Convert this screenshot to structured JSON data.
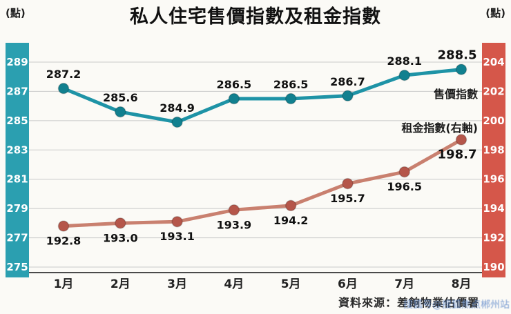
{
  "page": {
    "title": "私人住宅售價指數及租金指數",
    "left_unit": "(點)",
    "right_unit": "(點)",
    "source": "資料來源：差餉物業估價署",
    "watermark": "搜狐号@搜狐焦点郴州站"
  },
  "chart_data": {
    "type": "line",
    "title": "私人住宅售價指數及租金指數",
    "categories": [
      "1月",
      "2月",
      "3月",
      "4月",
      "5月",
      "6月",
      "7月",
      "8月"
    ],
    "series": [
      {
        "name": "售價指數",
        "axis": "left",
        "values": [
          287.2,
          285.6,
          284.9,
          286.5,
          286.5,
          286.7,
          288.1,
          288.5
        ],
        "color": "#1e93a6",
        "dot_color": "#11808f",
        "label_position": "above"
      },
      {
        "name": "租金指數(右軸)",
        "axis": "right",
        "values": [
          192.8,
          193.0,
          193.1,
          193.9,
          194.2,
          195.7,
          196.5,
          198.7
        ],
        "color": "#c9806f",
        "dot_color": "#b5564a",
        "label_position": "below"
      }
    ],
    "left_axis": {
      "unit": "點",
      "min": 275,
      "max": 289,
      "step": 2,
      "ticks": [
        289,
        287,
        285,
        283,
        281,
        279,
        277,
        275
      ],
      "band_color": "#2b9fb0"
    },
    "right_axis": {
      "unit": "點",
      "min": 190,
      "max": 204,
      "step": 2,
      "ticks": [
        204,
        202,
        200,
        198,
        196,
        194,
        192,
        190
      ],
      "band_color": "#d5574a"
    },
    "grid": true,
    "legend_position": "inline-right",
    "emphasize_last_point": true
  }
}
